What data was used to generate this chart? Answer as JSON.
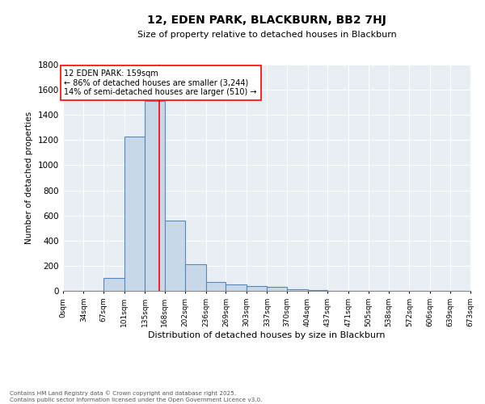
{
  "title": "12, EDEN PARK, BLACKBURN, BB2 7HJ",
  "subtitle": "Size of property relative to detached houses in Blackburn",
  "xlabel": "Distribution of detached houses by size in Blackburn",
  "ylabel": "Number of detached properties",
  "bin_labels": [
    "0sqm",
    "34sqm",
    "67sqm",
    "101sqm",
    "135sqm",
    "168sqm",
    "202sqm",
    "236sqm",
    "269sqm",
    "303sqm",
    "337sqm",
    "370sqm",
    "404sqm",
    "437sqm",
    "471sqm",
    "505sqm",
    "538sqm",
    "572sqm",
    "606sqm",
    "639sqm",
    "673sqm"
  ],
  "bin_edges": [
    0,
    34,
    67,
    101,
    135,
    168,
    202,
    236,
    269,
    303,
    337,
    370,
    404,
    437,
    471,
    505,
    538,
    572,
    606,
    639,
    673
  ],
  "bar_heights": [
    0,
    0,
    100,
    1230,
    1510,
    560,
    210,
    70,
    50,
    40,
    30,
    10,
    5,
    2,
    1,
    0,
    0,
    0,
    0,
    0
  ],
  "bar_color": "#c8d8e8",
  "bar_edge_color": "#5588bb",
  "property_line_x": 159,
  "property_line_color": "red",
  "annotation_title": "12 EDEN PARK: 159sqm",
  "annotation_line1": "← 86% of detached houses are smaller (3,244)",
  "annotation_line2": "14% of semi-detached houses are larger (510) →",
  "annotation_box_color": "white",
  "annotation_box_edge": "red",
  "ylim": [
    0,
    1800
  ],
  "yticks": [
    0,
    200,
    400,
    600,
    800,
    1000,
    1200,
    1400,
    1600,
    1800
  ],
  "bg_color": "#e8eef4",
  "footer_line1": "Contains HM Land Registry data © Crown copyright and database right 2025.",
  "footer_line2": "Contains public sector information licensed under the Open Government Licence v3.0."
}
